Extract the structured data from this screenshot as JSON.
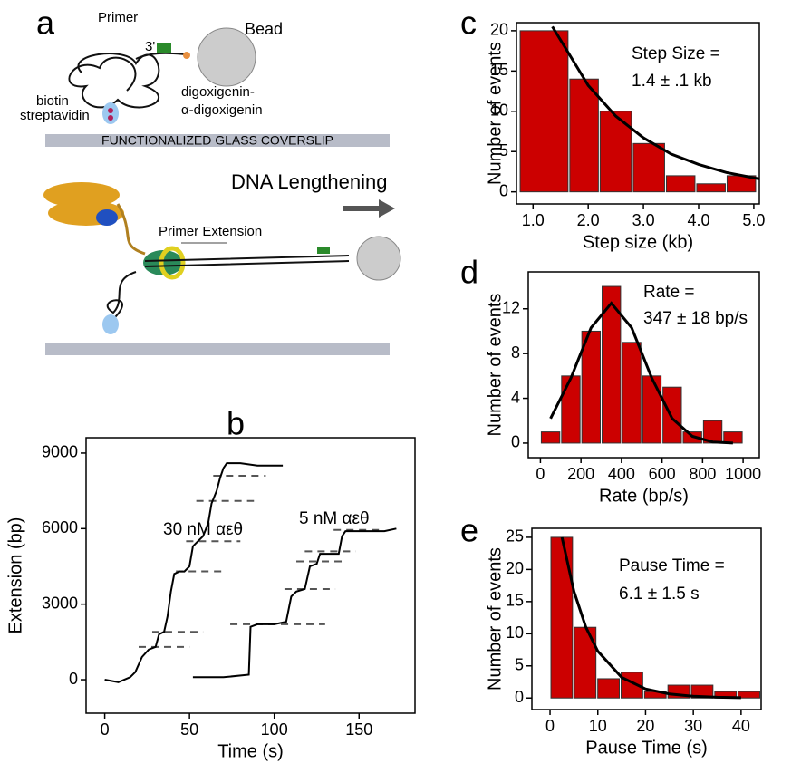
{
  "diagram": {
    "panel": "a",
    "primer": "Primer",
    "prime_end": "3'",
    "bead": "Bead",
    "dig1": "digoxigenin-",
    "dig2": "α-digoxigenin",
    "biotin": "biotin",
    "streptavidin": "streptavidin",
    "surface": "FUNCTIONALIZED GLASS COVERSLIP",
    "lengthening": "DNA Lengthening",
    "extension": "Primer Extension"
  },
  "chart_data": [
    {
      "type": "line",
      "panel": "b",
      "x_label": "Time (s)",
      "y_label": "Extension (bp)",
      "xlim": [
        -11,
        183
      ],
      "ylim": [
        -1330,
        9610
      ],
      "xticks": [
        0,
        50,
        100,
        150
      ],
      "yticks": [
        0,
        3000,
        6000,
        9000
      ],
      "series": [
        {
          "name": "30 nM αεθ",
          "color": "#000000",
          "x": [
            0,
            8,
            15,
            18,
            22,
            26,
            30,
            32,
            35,
            37,
            39,
            41,
            44,
            47,
            50,
            52,
            55,
            58,
            61,
            63,
            66,
            68,
            70,
            72,
            80,
            90,
            105
          ],
          "values": [
            0,
            -100,
            100,
            300,
            900,
            1200,
            1300,
            1800,
            1900,
            2500,
            3500,
            4200,
            4300,
            4300,
            4500,
            5300,
            5500,
            5700,
            6200,
            7000,
            7500,
            8000,
            8400,
            8600,
            8600,
            8500,
            8500
          ],
          "levels": [
            {
              "x": [
                20,
                50
              ],
              "y": 1300
            },
            {
              "x": [
                28,
                58
              ],
              "y": 1900
            },
            {
              "x": [
                42,
                71
              ],
              "y": 4300
            },
            {
              "x": [
                48,
                80
              ],
              "y": 5500
            },
            {
              "x": [
                54,
                88
              ],
              "y": 7100
            },
            {
              "x": [
                64,
                95
              ],
              "y": 8100
            }
          ]
        },
        {
          "name": "5 nM αεθ",
          "color": "#000000",
          "x": [
            52,
            70,
            85,
            86,
            90,
            100,
            107,
            110,
            113,
            118,
            121,
            125,
            127,
            134,
            138,
            140,
            142,
            155,
            165,
            172
          ],
          "values": [
            100,
            100,
            200,
            2100,
            2200,
            2200,
            2300,
            3300,
            3500,
            3600,
            4500,
            4600,
            5000,
            5000,
            5000,
            5700,
            5900,
            5900,
            5900,
            6000
          ],
          "levels": [
            {
              "x": [
                74,
                130
              ],
              "y": 2200
            },
            {
              "x": [
                106,
                136
              ],
              "y": 3600
            },
            {
              "x": [
                113,
                142
              ],
              "y": 4700
            },
            {
              "x": [
                118,
                148
              ],
              "y": 5100
            },
            {
              "x": [
                135,
                162
              ],
              "y": 5950
            }
          ]
        }
      ]
    },
    {
      "type": "histogram",
      "panel": "c",
      "x_label": "Step size (kb)",
      "y_label": "Number of events",
      "annotation": [
        "Step Size =",
        "1.4 ± .1 kb"
      ],
      "color": "#cc0000",
      "bins": [
        0.75,
        1.65,
        2.2,
        2.8,
        3.4,
        3.95,
        4.5,
        5.05
      ],
      "values": [
        20,
        14,
        10,
        6,
        2,
        1,
        2
      ],
      "fit": {
        "x": [
          1.35,
          2,
          2.5,
          3,
          3.5,
          4,
          4.5,
          5.1
        ],
        "values": [
          20.5,
          13.2,
          9.4,
          6.7,
          4.7,
          3.4,
          2.4,
          1.6
        ]
      },
      "xlim": [
        0.7,
        5.1
      ],
      "ylim": [
        -1.5,
        21
      ],
      "xticks": [
        {
          "value": 1,
          "label": "1.0"
        },
        {
          "value": 2,
          "label": "2.0"
        },
        {
          "value": 3,
          "label": "3.0"
        },
        {
          "value": 4,
          "label": "4.0"
        },
        {
          "value": 5,
          "label": "5.0"
        }
      ],
      "yticks": [
        0,
        5,
        10,
        15,
        20
      ]
    },
    {
      "type": "histogram",
      "panel": "d",
      "x_label": "Rate (bp/s)",
      "y_label": "Number of events",
      "annotation": [
        "Rate =",
        "347 ± 18 bp/s"
      ],
      "color": "#cc0000",
      "bins": [
        0,
        100,
        200,
        300,
        400,
        500,
        600,
        700,
        800,
        900,
        1000
      ],
      "values": [
        1,
        6,
        10,
        14,
        9,
        6,
        5,
        1,
        2,
        1
      ],
      "fit": {
        "x": [
          50,
          150,
          250,
          350,
          450,
          550,
          650,
          750,
          850,
          950
        ],
        "values": [
          2.2,
          5.8,
          10.3,
          12.5,
          10.3,
          5.8,
          2.2,
          0.6,
          0.1,
          0.0
        ]
      },
      "xlim": [
        -60,
        1080
      ],
      "ylim": [
        -1.3,
        15.3
      ],
      "xticks": [
        0,
        200,
        400,
        600,
        800,
        1000
      ],
      "yticks": [
        0,
        4,
        8,
        12
      ]
    },
    {
      "type": "histogram",
      "panel": "e",
      "x_label": "Pause Time (s)",
      "y_label": "Number of events",
      "annotation": [
        "Pause Time =",
        "6.1 ± 1.5 s"
      ],
      "color": "#cc0000",
      "bins": [
        0,
        4.9,
        9.8,
        14.7,
        19.6,
        24.5,
        29.4,
        34.3,
        39.2,
        44.1
      ],
      "values": [
        25,
        11,
        3,
        4,
        1,
        2,
        2,
        1,
        1
      ],
      "fit": {
        "x": [
          2.5,
          5,
          7.5,
          10,
          15,
          20,
          25,
          30,
          35,
          40
        ],
        "values": [
          25,
          16.6,
          11.0,
          7.3,
          3.2,
          1.41,
          0.62,
          0.27,
          0.12,
          0.05
        ]
      },
      "xlim": [
        -3.8,
        44.2
      ],
      "ylim": [
        -1.8,
        26.4
      ],
      "xticks": [
        0,
        10,
        20,
        30,
        40
      ],
      "yticks": [
        0,
        5,
        10,
        15,
        20,
        25
      ]
    }
  ]
}
